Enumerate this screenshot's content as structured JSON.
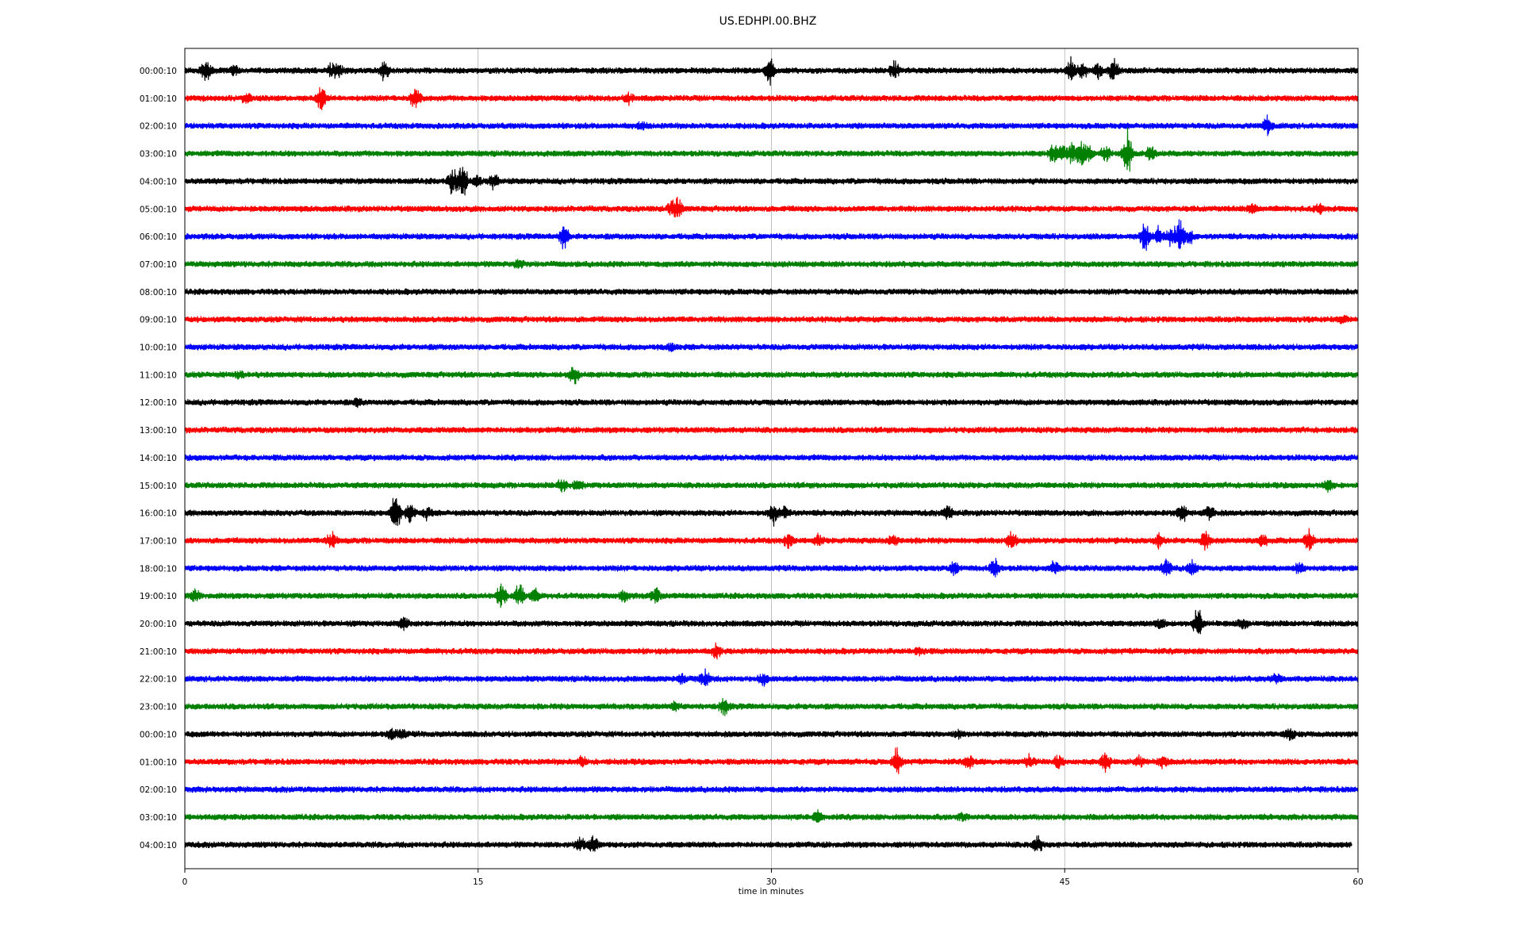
{
  "chart_data": {
    "type": "line",
    "title": "US.EDHPI.00.BHZ",
    "xlabel": "time in minutes",
    "ylabel": "",
    "xlim": [
      0,
      60
    ],
    "x_ticks": [
      0,
      15,
      30,
      45,
      60
    ],
    "grid": "vertical",
    "line_colors": [
      "#000000",
      "#ff0000",
      "#0000ff",
      "#008000"
    ],
    "last_row_end_minute": 59.7,
    "rows": [
      {
        "label": "00:00:10",
        "color": "#000000",
        "events": [
          {
            "minute": 1.0,
            "amp": 9
          },
          {
            "minute": 1.2,
            "amp": 6
          },
          {
            "minute": 2.5,
            "amp": 5
          },
          {
            "minute": 7.5,
            "amp": 9
          },
          {
            "minute": 7.9,
            "amp": 7
          },
          {
            "minute": 10.2,
            "amp": 11
          },
          {
            "minute": 29.9,
            "amp": 18
          },
          {
            "minute": 36.3,
            "amp": 10
          },
          {
            "minute": 45.3,
            "amp": 16
          },
          {
            "minute": 45.9,
            "amp": 10
          },
          {
            "minute": 46.7,
            "amp": 9
          },
          {
            "minute": 47.5,
            "amp": 16
          }
        ]
      },
      {
        "label": "01:00:10",
        "color": "#ff0000",
        "events": [
          {
            "minute": 3.2,
            "amp": 7
          },
          {
            "minute": 7.0,
            "amp": 16
          },
          {
            "minute": 11.8,
            "amp": 15
          },
          {
            "minute": 22.7,
            "amp": 5
          }
        ]
      },
      {
        "label": "02:00:10",
        "color": "#0000ff",
        "events": [
          {
            "minute": 23.4,
            "amp": 4
          },
          {
            "minute": 55.4,
            "amp": 12
          }
        ]
      },
      {
        "label": "03:00:10",
        "color": "#008000",
        "events": [
          {
            "minute": 44.4,
            "amp": 12
          },
          {
            "minute": 44.9,
            "amp": 10
          },
          {
            "minute": 45.4,
            "amp": 12
          },
          {
            "minute": 45.8,
            "amp": 16
          },
          {
            "minute": 46.2,
            "amp": 9
          },
          {
            "minute": 47.1,
            "amp": 10
          },
          {
            "minute": 48.2,
            "amp": 28
          },
          {
            "minute": 49.4,
            "amp": 9
          }
        ]
      },
      {
        "label": "04:00:10",
        "color": "#000000",
        "events": [
          {
            "minute": 13.7,
            "amp": 16
          },
          {
            "minute": 14.2,
            "amp": 24
          },
          {
            "minute": 14.9,
            "amp": 6
          },
          {
            "minute": 15.8,
            "amp": 8
          }
        ]
      },
      {
        "label": "05:00:10",
        "color": "#ff0000",
        "events": [
          {
            "minute": 24.9,
            "amp": 8
          },
          {
            "minute": 25.2,
            "amp": 13
          },
          {
            "minute": 54.6,
            "amp": 6
          },
          {
            "minute": 58.0,
            "amp": 5
          }
        ]
      },
      {
        "label": "06:00:10",
        "color": "#0000ff",
        "events": [
          {
            "minute": 19.4,
            "amp": 16
          },
          {
            "minute": 49.1,
            "amp": 18
          },
          {
            "minute": 49.8,
            "amp": 10
          },
          {
            "minute": 50.4,
            "amp": 14
          },
          {
            "minute": 50.9,
            "amp": 22
          },
          {
            "minute": 51.4,
            "amp": 8
          }
        ]
      },
      {
        "label": "07:00:10",
        "color": "#008000",
        "events": [
          {
            "minute": 17.1,
            "amp": 4
          }
        ]
      },
      {
        "label": "08:00:10",
        "color": "#000000",
        "events": []
      },
      {
        "label": "09:00:10",
        "color": "#ff0000",
        "events": [
          {
            "minute": 59.2,
            "amp": 4
          }
        ]
      },
      {
        "label": "10:00:10",
        "color": "#0000ff",
        "events": [
          {
            "minute": 24.9,
            "amp": 4
          }
        ]
      },
      {
        "label": "11:00:10",
        "color": "#008000",
        "events": [
          {
            "minute": 2.8,
            "amp": 4
          },
          {
            "minute": 19.9,
            "amp": 13
          }
        ]
      },
      {
        "label": "12:00:10",
        "color": "#000000",
        "events": [
          {
            "minute": 8.8,
            "amp": 5
          }
        ]
      },
      {
        "label": "13:00:10",
        "color": "#ff0000",
        "events": []
      },
      {
        "label": "14:00:10",
        "color": "#0000ff",
        "events": []
      },
      {
        "label": "15:00:10",
        "color": "#008000",
        "events": [
          {
            "minute": 19.3,
            "amp": 8
          },
          {
            "minute": 20.1,
            "amp": 6
          },
          {
            "minute": 58.5,
            "amp": 8
          }
        ]
      },
      {
        "label": "16:00:10",
        "color": "#000000",
        "events": [
          {
            "minute": 10.8,
            "amp": 28
          },
          {
            "minute": 11.5,
            "amp": 11
          },
          {
            "minute": 12.4,
            "amp": 7
          },
          {
            "minute": 30.1,
            "amp": 12
          },
          {
            "minute": 30.7,
            "amp": 9
          },
          {
            "minute": 39.0,
            "amp": 9
          },
          {
            "minute": 51.0,
            "amp": 12
          },
          {
            "minute": 52.4,
            "amp": 8
          }
        ]
      },
      {
        "label": "17:00:10",
        "color": "#ff0000",
        "events": [
          {
            "minute": 7.5,
            "amp": 12
          },
          {
            "minute": 30.9,
            "amp": 9
          },
          {
            "minute": 32.4,
            "amp": 6
          },
          {
            "minute": 36.2,
            "amp": 6
          },
          {
            "minute": 42.3,
            "amp": 11
          },
          {
            "minute": 49.8,
            "amp": 8
          },
          {
            "minute": 52.2,
            "amp": 10
          },
          {
            "minute": 55.1,
            "amp": 8
          },
          {
            "minute": 57.5,
            "amp": 12
          }
        ]
      },
      {
        "label": "18:00:10",
        "color": "#0000ff",
        "events": [
          {
            "minute": 39.4,
            "amp": 7
          },
          {
            "minute": 41.4,
            "amp": 13
          },
          {
            "minute": 44.5,
            "amp": 8
          },
          {
            "minute": 50.2,
            "amp": 10
          },
          {
            "minute": 51.5,
            "amp": 9
          },
          {
            "minute": 57.0,
            "amp": 7
          }
        ]
      },
      {
        "label": "19:00:10",
        "color": "#008000",
        "events": [
          {
            "minute": 0.5,
            "amp": 7
          },
          {
            "minute": 16.2,
            "amp": 14
          },
          {
            "minute": 17.1,
            "amp": 18
          },
          {
            "minute": 17.9,
            "amp": 8
          },
          {
            "minute": 22.5,
            "amp": 7
          },
          {
            "minute": 24.1,
            "amp": 10
          }
        ]
      },
      {
        "label": "20:00:10",
        "color": "#000000",
        "events": [
          {
            "minute": 11.2,
            "amp": 7
          },
          {
            "minute": 49.9,
            "amp": 7
          },
          {
            "minute": 51.8,
            "amp": 20
          },
          {
            "minute": 54.1,
            "amp": 5
          }
        ]
      },
      {
        "label": "21:00:10",
        "color": "#ff0000",
        "events": [
          {
            "minute": 27.2,
            "amp": 8
          },
          {
            "minute": 37.6,
            "amp": 5
          }
        ]
      },
      {
        "label": "22:00:10",
        "color": "#0000ff",
        "events": [
          {
            "minute": 25.4,
            "amp": 5
          },
          {
            "minute": 26.6,
            "amp": 12
          },
          {
            "minute": 29.6,
            "amp": 7
          },
          {
            "minute": 55.8,
            "amp": 5
          }
        ]
      },
      {
        "label": "23:00:10",
        "color": "#008000",
        "events": [
          {
            "minute": 27.6,
            "amp": 10
          },
          {
            "minute": 25.1,
            "amp": 5
          }
        ]
      },
      {
        "label": "00:00:10",
        "color": "#000000",
        "events": [
          {
            "minute": 10.6,
            "amp": 6
          },
          {
            "minute": 11.1,
            "amp": 5
          },
          {
            "minute": 39.6,
            "amp": 4
          },
          {
            "minute": 56.5,
            "amp": 8
          }
        ]
      },
      {
        "label": "01:00:10",
        "color": "#ff0000",
        "events": [
          {
            "minute": 20.3,
            "amp": 6
          },
          {
            "minute": 36.4,
            "amp": 15
          },
          {
            "minute": 40.1,
            "amp": 8
          },
          {
            "minute": 43.2,
            "amp": 7
          },
          {
            "minute": 44.7,
            "amp": 8
          },
          {
            "minute": 47.1,
            "amp": 12
          },
          {
            "minute": 48.8,
            "amp": 6
          },
          {
            "minute": 50.0,
            "amp": 6
          }
        ]
      },
      {
        "label": "02:00:10",
        "color": "#0000ff",
        "events": []
      },
      {
        "label": "03:00:10",
        "color": "#008000",
        "events": [
          {
            "minute": 32.4,
            "amp": 7
          },
          {
            "minute": 39.8,
            "amp": 4
          }
        ]
      },
      {
        "label": "04:00:10",
        "color": "#000000",
        "events": [
          {
            "minute": 20.2,
            "amp": 9
          },
          {
            "minute": 20.9,
            "amp": 10
          },
          {
            "minute": 43.6,
            "amp": 11
          }
        ]
      }
    ]
  }
}
